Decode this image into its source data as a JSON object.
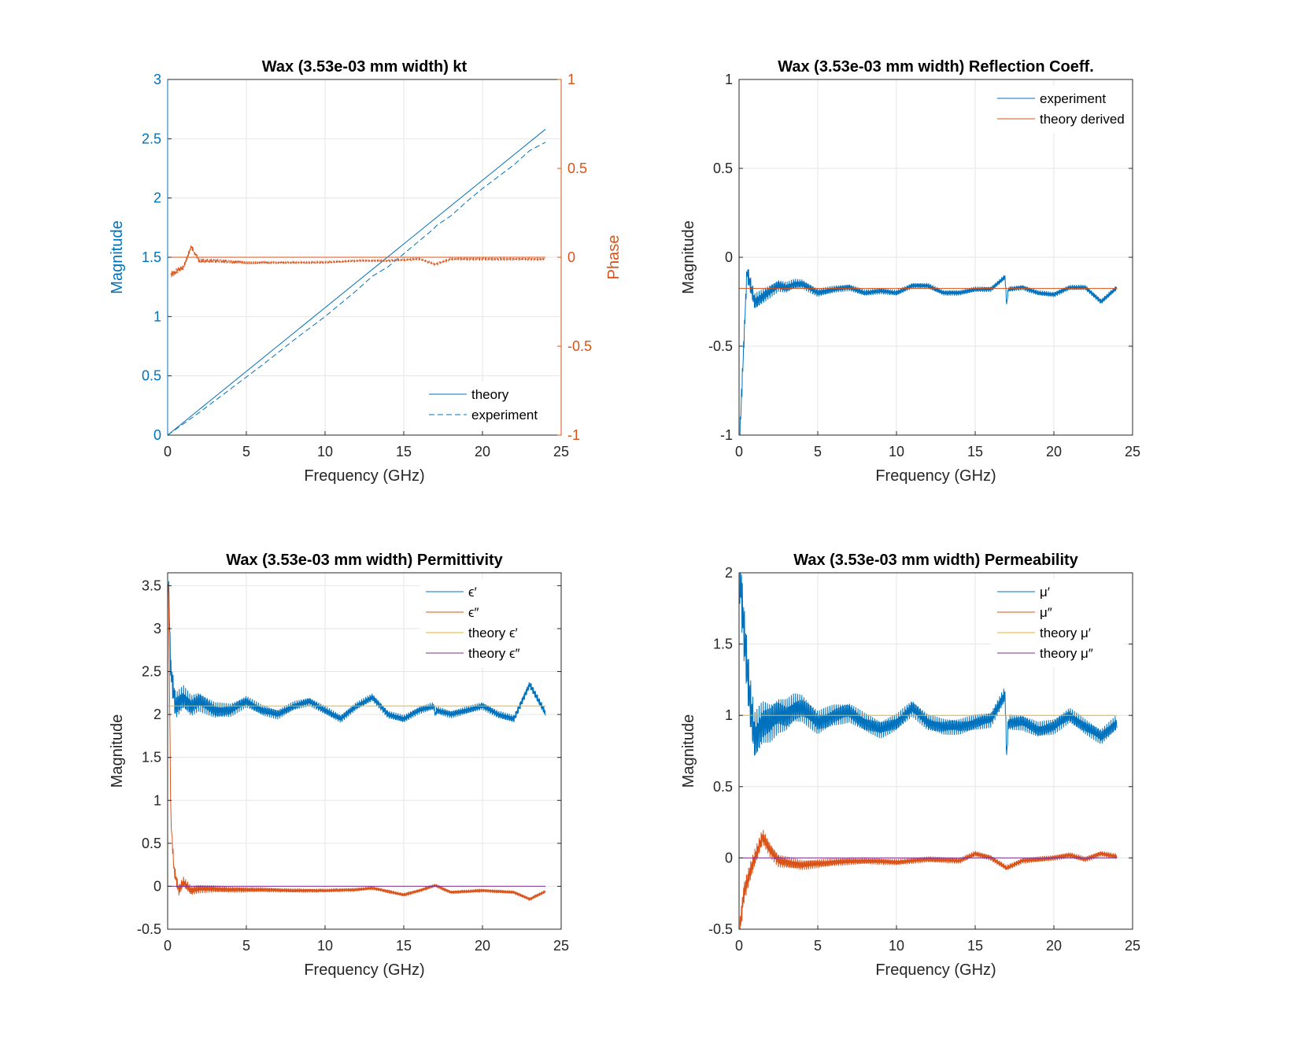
{
  "colors": {
    "blue": "#0072BD",
    "orange": "#D95319",
    "yellow": "#EDB120",
    "purple": "#7E2F8E",
    "axis": "#262626",
    "grid": "#e6e6e6"
  },
  "chart_data": [
    {
      "type": "line",
      "title": "Wax (3.53e-03 mm width) kt",
      "xlabel": "Frequency (GHz)",
      "ylabel": "Magnitude",
      "y2label": "Phase",
      "xlim": [
        0,
        25
      ],
      "ylim": [
        0,
        3
      ],
      "y2lim": [
        -1,
        1
      ],
      "xticks": [
        "0",
        "5",
        "10",
        "15",
        "20",
        "25"
      ],
      "yticks": [
        "0",
        "0.5",
        "1",
        "1.5",
        "2",
        "2.5",
        "3"
      ],
      "y2ticks": [
        "-1",
        "-0.5",
        "0",
        "0.5",
        "1"
      ],
      "grid": true,
      "legend": "bottom-right",
      "series": [
        {
          "name": "theory",
          "axis": "left",
          "color": "blue",
          "dash": "solid",
          "x": [
            0,
            24
          ],
          "y": [
            0,
            2.58
          ]
        },
        {
          "name": "experiment",
          "axis": "left",
          "color": "blue",
          "dash": "dashed",
          "x": [
            0,
            2,
            4,
            6,
            8,
            10,
            11,
            12,
            13,
            14,
            15,
            16,
            16.9,
            17.1,
            18,
            19,
            20,
            21,
            22,
            23,
            24
          ],
          "y": [
            0,
            0.19,
            0.39,
            0.59,
            0.8,
            1.0,
            1.11,
            1.22,
            1.34,
            1.42,
            1.53,
            1.64,
            1.74,
            1.77,
            1.85,
            1.97,
            2.08,
            2.18,
            2.28,
            2.4,
            2.47
          ]
        },
        {
          "name": "",
          "axis": "right",
          "color": "orange",
          "dash": "solid",
          "x": [
            0,
            24
          ],
          "y": [
            0,
            0
          ]
        },
        {
          "name": "",
          "axis": "right",
          "color": "orange",
          "dash": "dashed",
          "x": [
            0.2,
            0.5,
            1,
            1.5,
            2,
            3,
            5,
            8,
            10,
            12,
            14,
            16,
            17,
            18,
            20,
            22,
            24
          ],
          "y": [
            -0.1,
            -0.08,
            -0.06,
            0.06,
            -0.02,
            -0.02,
            -0.03,
            -0.03,
            -0.03,
            -0.02,
            -0.02,
            -0.01,
            -0.04,
            -0.01,
            -0.01,
            -0.01,
            -0.01
          ]
        }
      ]
    },
    {
      "type": "line",
      "title": "Wax (3.53e-03 mm width) Reflection Coeff.",
      "xlabel": "Frequency (GHz)",
      "ylabel": "Magnitude",
      "xlim": [
        0,
        25
      ],
      "ylim": [
        -1,
        1
      ],
      "xticks": [
        "0",
        "5",
        "10",
        "15",
        "20",
        "25"
      ],
      "yticks": [
        "-1",
        "-0.5",
        "0",
        "0.5",
        "1"
      ],
      "grid": true,
      "legend": "top-right",
      "series": [
        {
          "name": "experiment",
          "color": "blue",
          "x": [
            0.05,
            0.5,
            1,
            1.5,
            2,
            2.5,
            3,
            3.5,
            4,
            5,
            6,
            7,
            8,
            9,
            10,
            11,
            12,
            13,
            14,
            15,
            16,
            16.9,
            17,
            17.1,
            18,
            19,
            20,
            21,
            22,
            23,
            24
          ],
          "y": [
            -1,
            -0.08,
            -0.25,
            -0.22,
            -0.19,
            -0.16,
            -0.17,
            -0.15,
            -0.15,
            -0.2,
            -0.18,
            -0.17,
            -0.2,
            -0.19,
            -0.2,
            -0.16,
            -0.16,
            -0.2,
            -0.2,
            -0.18,
            -0.18,
            -0.11,
            -0.27,
            -0.18,
            -0.17,
            -0.2,
            -0.21,
            -0.17,
            -0.17,
            -0.25,
            -0.17
          ]
        },
        {
          "name": "theory derived",
          "color": "orange",
          "x": [
            0,
            24
          ],
          "y": [
            -0.175,
            -0.175
          ]
        }
      ]
    },
    {
      "type": "line",
      "title": "Wax (3.53e-03 mm width) Permittivity",
      "xlabel": "Frequency (GHz)",
      "ylabel": "Magnitude",
      "xlim": [
        0,
        25
      ],
      "ylim": [
        -0.5,
        3.65
      ],
      "xticks": [
        "0",
        "5",
        "10",
        "15",
        "20",
        "25"
      ],
      "yticks": [
        "-0.5",
        "0",
        "0.5",
        "1",
        "1.5",
        "2",
        "2.5",
        "3",
        "3.5"
      ],
      "grid": true,
      "legend": "top-right",
      "series": [
        {
          "name": "ϵ′",
          "color": "blue",
          "x": [
            0.05,
            0.2,
            0.5,
            1,
            1.5,
            2,
            2.5,
            3,
            4,
            5,
            6,
            7,
            8,
            9,
            10,
            11,
            12,
            13,
            14,
            15,
            16,
            16.9,
            17,
            17.1,
            18,
            19,
            20,
            21,
            22,
            23,
            24
          ],
          "y": [
            3.6,
            2.5,
            2.1,
            2.2,
            2.1,
            2.15,
            2.1,
            2.05,
            2.05,
            2.15,
            2.05,
            2.0,
            2.1,
            2.15,
            2.05,
            1.95,
            2.1,
            2.2,
            2.0,
            1.95,
            2.05,
            2.1,
            2.0,
            2.05,
            2.0,
            2.05,
            2.1,
            2.0,
            1.95,
            2.35,
            2.02
          ]
        },
        {
          "name": "ϵ″",
          "color": "orange",
          "x": [
            0.05,
            0.2,
            0.4,
            0.7,
            1,
            1.5,
            2,
            3,
            4,
            6,
            8,
            10,
            12,
            13,
            14,
            15,
            16,
            17,
            18,
            20,
            21,
            22,
            23,
            24
          ],
          "y": [
            3.6,
            0.8,
            0.2,
            -0.05,
            0.05,
            -0.05,
            -0.03,
            -0.03,
            -0.04,
            -0.04,
            -0.05,
            -0.05,
            -0.04,
            -0.02,
            -0.06,
            -0.1,
            -0.05,
            0.01,
            -0.07,
            -0.05,
            -0.06,
            -0.07,
            -0.15,
            -0.06
          ]
        },
        {
          "name": "theory ϵ′",
          "color": "yellow",
          "x": [
            0,
            24
          ],
          "y": [
            2.1,
            2.1
          ]
        },
        {
          "name": "theory ϵ″",
          "color": "purple",
          "x": [
            0,
            24
          ],
          "y": [
            0,
            0
          ]
        }
      ]
    },
    {
      "type": "line",
      "title": "Wax (3.53e-03 mm width) Permeability",
      "xlabel": "Frequency (GHz)",
      "ylabel": "Magnitude",
      "xlim": [
        0,
        25
      ],
      "ylim": [
        -0.5,
        2
      ],
      "xticks": [
        "0",
        "5",
        "10",
        "15",
        "20",
        "25"
      ],
      "yticks": [
        "-0.5",
        "0",
        "0.5",
        "1",
        "1.5",
        "2"
      ],
      "grid": true,
      "legend": "top-right",
      "series": [
        {
          "name": "μ′",
          "color": "blue",
          "x": [
            0.05,
            0.3,
            0.7,
            1,
            1.5,
            2,
            2.5,
            3,
            3.5,
            4,
            5,
            6,
            7,
            8,
            9,
            10,
            11,
            12,
            13,
            14,
            15,
            16,
            16.9,
            17,
            17.1,
            18,
            19,
            20,
            21,
            22,
            23,
            24
          ],
          "y": [
            2.0,
            1.6,
            1.1,
            0.85,
            0.95,
            0.95,
            1.0,
            1.0,
            1.05,
            1.05,
            0.95,
            1.0,
            1.02,
            0.95,
            0.9,
            0.95,
            1.05,
            0.95,
            0.92,
            0.92,
            0.95,
            0.97,
            1.15,
            0.7,
            0.95,
            0.95,
            0.9,
            0.92,
            1.0,
            0.92,
            0.85,
            0.95
          ]
        },
        {
          "name": "μ″",
          "color": "orange",
          "x": [
            0.05,
            0.3,
            0.7,
            1,
            1.5,
            2,
            2.5,
            3,
            4,
            5,
            6,
            8,
            10,
            12,
            14,
            15,
            16,
            17,
            18,
            20,
            21,
            22,
            23,
            24
          ],
          "y": [
            -0.5,
            -0.25,
            -0.1,
            0.0,
            0.15,
            0.05,
            -0.02,
            -0.03,
            -0.05,
            -0.04,
            -0.03,
            -0.02,
            -0.03,
            -0.01,
            -0.02,
            0.03,
            0.0,
            -0.07,
            -0.02,
            0.0,
            0.02,
            -0.01,
            0.03,
            0.01
          ]
        },
        {
          "name": "theory μ′",
          "color": "yellow",
          "x": [
            0,
            24
          ],
          "y": [
            1,
            1
          ]
        },
        {
          "name": "theory μ″",
          "color": "purple",
          "x": [
            0,
            24
          ],
          "y": [
            0,
            0
          ]
        }
      ]
    }
  ]
}
